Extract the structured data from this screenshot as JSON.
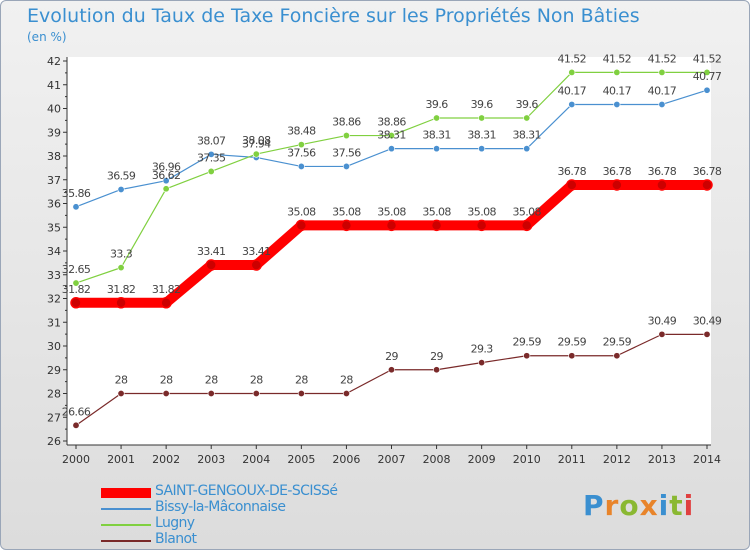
{
  "title": "Evolution du Taux de Taxe Foncière sur les Propriétés Non Bâties",
  "unit_label": "(en %)",
  "logo": {
    "text": "Proxiti",
    "colors": [
      "#3a8fd0",
      "#e8842a",
      "#8ab832",
      "#e8842a",
      "#3a8fd0",
      "#8ab832",
      "#e04040"
    ]
  },
  "chart_data": {
    "type": "line",
    "title": "Evolution du Taux de Taxe Foncière sur les Propriétés Non Bâties",
    "ylabel": "(en %)",
    "xlabel": "",
    "ylim": [
      26,
      42
    ],
    "yticks": [
      26,
      27,
      28,
      29,
      30,
      31,
      32,
      33,
      34,
      35,
      36,
      37,
      38,
      39,
      40,
      41,
      42
    ],
    "grid": false,
    "legend": "bottom-left",
    "x": [
      2000,
      2001,
      2002,
      2003,
      2004,
      2005,
      2006,
      2007,
      2008,
      2009,
      2010,
      2011,
      2012,
      2013,
      2014
    ],
    "series": [
      {
        "name": "SAINT-GENGOUX-DE-SCISSé",
        "color": "#ff0000",
        "thick": true,
        "values": [
          31.82,
          31.82,
          31.82,
          33.41,
          33.41,
          35.08,
          35.08,
          35.08,
          35.08,
          35.08,
          35.08,
          36.78,
          36.78,
          36.78,
          36.78
        ]
      },
      {
        "name": "Bissy-la-Mâconnaise",
        "color": "#4a90d0",
        "thick": false,
        "values": [
          35.86,
          36.59,
          36.96,
          38.07,
          37.94,
          37.56,
          37.56,
          38.31,
          38.31,
          38.31,
          38.31,
          40.17,
          40.17,
          40.17,
          40.77
        ]
      },
      {
        "name": "Lugny",
        "color": "#80d040",
        "thick": false,
        "values": [
          32.65,
          33.3,
          36.62,
          37.35,
          38.08,
          38.48,
          38.86,
          38.86,
          39.6,
          39.6,
          39.6,
          41.52,
          41.52,
          41.52,
          41.52
        ]
      },
      {
        "name": "Blanot",
        "color": "#7a2a2a",
        "thick": false,
        "values": [
          26.66,
          28,
          28,
          28,
          28,
          28,
          28,
          29,
          29,
          29.3,
          29.59,
          29.59,
          29.59,
          30.49,
          30.49
        ]
      }
    ]
  }
}
